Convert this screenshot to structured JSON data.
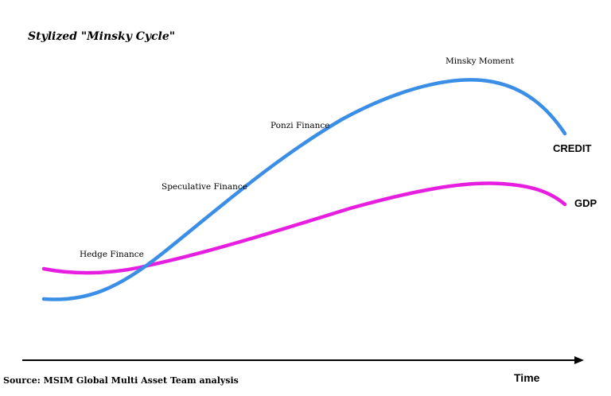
{
  "title": "Stylized \"Minsky Cycle\"",
  "phases": {
    "hedge": "Hedge Finance",
    "speculative": "Speculative Finance",
    "ponzi": "Ponzi Finance",
    "minsky_moment": "Minsky Moment"
  },
  "series": {
    "credit": {
      "name": "CREDIT",
      "color": "#3b8ee6"
    },
    "gdp": {
      "name": "GDP",
      "color": "#e61ee0"
    }
  },
  "axis": {
    "x_label": "Time"
  },
  "source": "Source: MSIM Global Multi Asset Team analysis"
}
